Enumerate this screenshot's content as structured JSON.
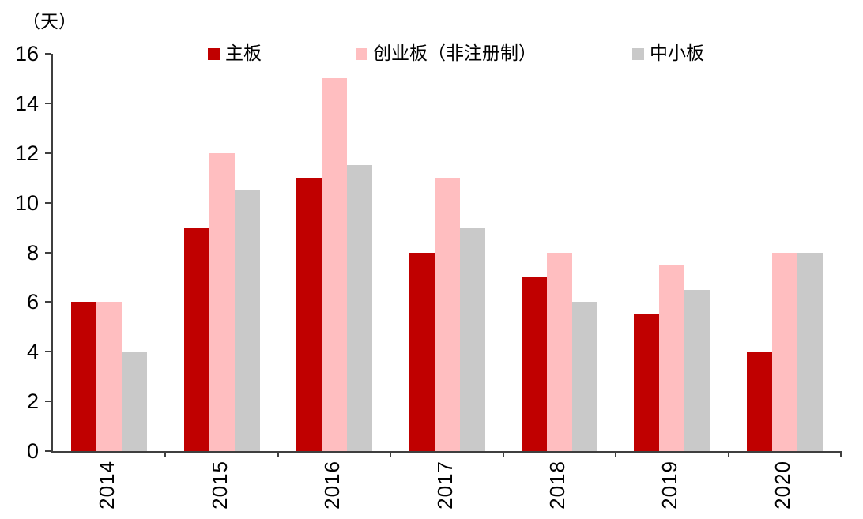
{
  "chart_data": {
    "type": "bar",
    "title": "",
    "xlabel": "",
    "ylabel": "（天）",
    "categories": [
      "2014",
      "2015",
      "2016",
      "2017",
      "2018",
      "2019",
      "2020"
    ],
    "series": [
      {
        "name": "主板",
        "color": "#C00000",
        "values": [
          6,
          9,
          11,
          8,
          7,
          5.5,
          4
        ]
      },
      {
        "name": "创业板（非注册制）",
        "color": "#FFBEC0",
        "values": [
          6,
          12,
          15,
          11,
          8,
          7.5,
          8
        ]
      },
      {
        "name": "中小板",
        "color": "#C9C9C9",
        "values": [
          4,
          10.5,
          11.5,
          9,
          6,
          6.5,
          8
        ]
      }
    ],
    "ylim": [
      0,
      16
    ],
    "yticks": [
      0,
      2,
      4,
      6,
      8,
      10,
      12,
      14,
      16
    ],
    "ytick_step": 2,
    "axis_color": "#3f3f3f",
    "legend_position": "top",
    "grid": false
  }
}
